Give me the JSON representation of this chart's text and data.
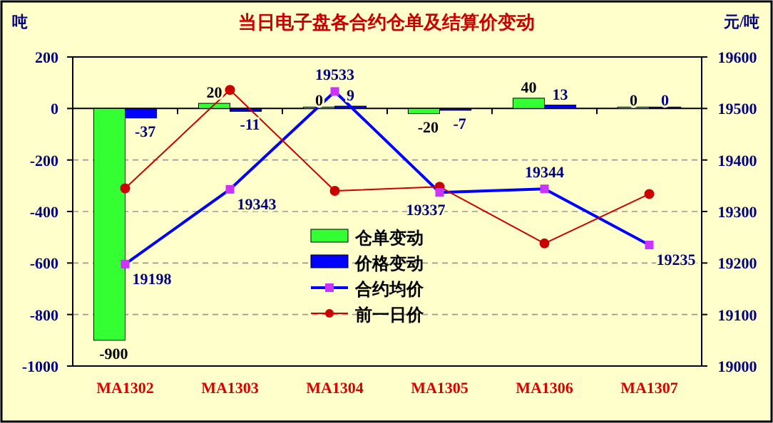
{
  "chart_data": {
    "type": "bar",
    "title": "当日电子盘各合约仓单及结算价变动",
    "ylabel": "吨",
    "y2label": "元/吨",
    "categories": [
      "MA1302",
      "MA1303",
      "MA1304",
      "MA1305",
      "MA1306",
      "MA1307"
    ],
    "series": [
      {
        "name": "仓单变动",
        "color": "#33ff33",
        "values": [
          -900,
          20,
          0,
          -20,
          40,
          0
        ],
        "data_labels": true
      },
      {
        "name": "价格变动",
        "color": "#0000ff",
        "values": [
          -37,
          -11,
          9,
          -7,
          13,
          0
        ],
        "data_labels": true
      },
      {
        "name": "合约均价",
        "type": "line",
        "axis": "y2",
        "color": "#0000ff",
        "marker": "square",
        "values": [
          19198,
          19343,
          19533,
          19337,
          19344,
          19235
        ],
        "data_labels": true
      },
      {
        "name": "前一日价",
        "type": "line",
        "axis": "y2",
        "color": "#cc0000",
        "marker": "circle",
        "values": [
          19345,
          19536,
          19340,
          19348,
          19238,
          19334
        ]
      }
    ],
    "ylim": [
      -1000,
      200
    ],
    "yticks": [
      -1000,
      -800,
      -600,
      -400,
      -200,
      0,
      200
    ],
    "y2lim": [
      19000,
      19600
    ],
    "y2ticks": [
      19000,
      19100,
      19200,
      19300,
      19400,
      19500,
      19600
    ],
    "grid": "y",
    "legend": "center"
  }
}
